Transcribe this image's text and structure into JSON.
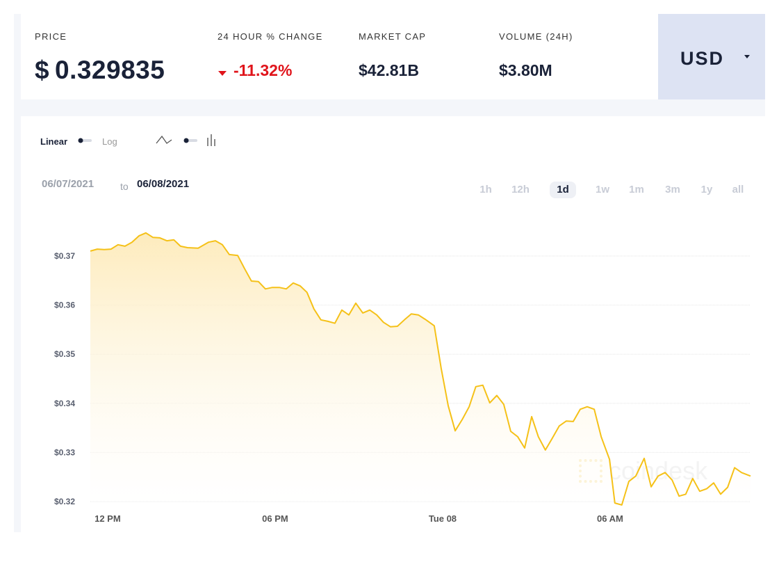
{
  "header": {
    "stats": [
      {
        "label": "PRICE",
        "symbol": "$",
        "value": "0.329835"
      },
      {
        "label": "24 HOUR % CHANGE",
        "value": "-11.32%"
      },
      {
        "label": "MARKET CAP",
        "value": "$42.81B"
      },
      {
        "label": "VOLUME (24H)",
        "value": "$3.80M"
      }
    ],
    "currency": "USD"
  },
  "controls": {
    "scale_linear": "Linear",
    "scale_log": "Log",
    "date_from": "06/07/2021",
    "date_to_word": "to",
    "date_to": "06/08/2021",
    "ranges": [
      "1h",
      "12h",
      "1d",
      "1w",
      "1m",
      "3m",
      "1y",
      "all"
    ],
    "active_range": "1d"
  },
  "watermark": "coindesk",
  "chart_data": {
    "type": "line",
    "color": "#f5c118",
    "grid": true,
    "x": [
      11.38,
      11.63,
      11.88,
      12.12,
      12.37,
      12.62,
      12.87,
      13.12,
      13.37,
      13.62,
      13.87,
      14.12,
      14.37,
      14.61,
      14.86,
      15.24,
      15.61,
      15.86,
      16.11,
      16.36,
      16.66,
      16.9,
      17.15,
      17.4,
      17.65,
      17.9,
      18.15,
      18.4,
      18.65,
      18.9,
      19.14,
      19.39,
      19.64,
      19.89,
      20.14,
      20.39,
      20.64,
      20.89,
      21.14,
      21.39,
      21.64,
      21.88,
      22.13,
      22.38,
      22.63,
      22.88,
      23.13,
      23.38,
      23.7,
      23.95,
      24.2,
      24.45,
      24.7,
      24.95,
      25.19,
      25.44,
      25.69,
      25.94,
      26.19,
      26.44,
      26.69,
      26.94,
      27.19,
      27.43,
      27.68,
      27.93,
      28.18,
      28.43,
      28.68,
      28.93,
      29.18,
      29.43,
      29.68,
      29.98,
      30.17,
      30.42,
      30.67,
      30.92,
      31.22,
      31.47,
      31.72,
      31.97,
      32.22,
      32.47,
      32.71,
      32.96,
      33.21,
      33.46,
      33.71,
      33.96,
      34.21,
      34.46,
      34.71,
      35.03
    ],
    "values": [
      0.371,
      0.3714,
      0.3713,
      0.3714,
      0.3723,
      0.372,
      0.3728,
      0.3741,
      0.3747,
      0.3738,
      0.3737,
      0.3731,
      0.3733,
      0.372,
      0.3717,
      0.3716,
      0.3728,
      0.3731,
      0.3723,
      0.3703,
      0.3701,
      0.3675,
      0.3649,
      0.3648,
      0.3633,
      0.3636,
      0.3636,
      0.3633,
      0.3645,
      0.3639,
      0.3626,
      0.3592,
      0.357,
      0.3567,
      0.3563,
      0.359,
      0.358,
      0.3604,
      0.3584,
      0.359,
      0.358,
      0.3565,
      0.3556,
      0.3557,
      0.357,
      0.3582,
      0.358,
      0.3571,
      0.3558,
      0.3471,
      0.3395,
      0.3344,
      0.3367,
      0.3393,
      0.3434,
      0.3437,
      0.3401,
      0.3416,
      0.3398,
      0.3343,
      0.3332,
      0.3309,
      0.3373,
      0.3332,
      0.3305,
      0.3329,
      0.3354,
      0.3364,
      0.3363,
      0.3388,
      0.3393,
      0.3388,
      0.3332,
      0.3286,
      0.3197,
      0.3193,
      0.3241,
      0.3252,
      0.3288,
      0.323,
      0.3252,
      0.3259,
      0.3244,
      0.3211,
      0.3215,
      0.3247,
      0.3221,
      0.3226,
      0.3238,
      0.3215,
      0.3229,
      0.3269,
      0.3259,
      0.3252
    ],
    "xlim": [
      11.38,
      35.03
    ],
    "xticks": [
      {
        "value": 12,
        "label": "12 PM"
      },
      {
        "value": 18,
        "label": "06 PM"
      },
      {
        "value": 24,
        "label": "Tue 08"
      },
      {
        "value": 30,
        "label": "06 AM"
      }
    ],
    "ylim": [
      0.32,
      0.376
    ],
    "yticks": [
      {
        "value": 0.32,
        "label": "$0.32"
      },
      {
        "value": 0.33,
        "label": "$0.33"
      },
      {
        "value": 0.34,
        "label": "$0.34"
      },
      {
        "value": 0.35,
        "label": "$0.35"
      },
      {
        "value": 0.36,
        "label": "$0.36"
      },
      {
        "value": 0.37,
        "label": "$0.37"
      }
    ]
  }
}
